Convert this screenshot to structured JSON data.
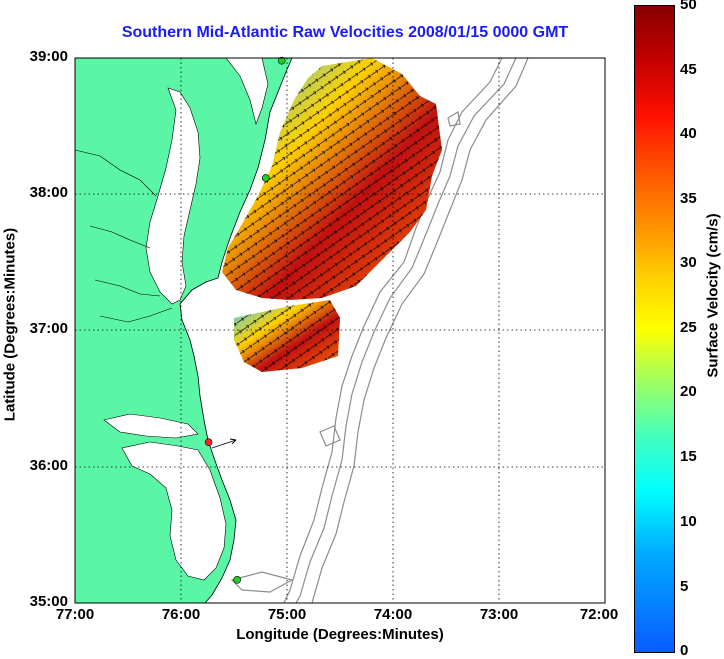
{
  "title": "Southern Mid-Atlantic Raw Velocities 2008/01/15 0000 GMT",
  "x_axis": {
    "label": "Longitude (Degrees:Minutes)",
    "ticks": [
      "77:00",
      "76:00",
      "75:00",
      "74:00",
      "73:00",
      "72:00"
    ]
  },
  "y_axis": {
    "label": "Latitude (Degrees:Minutes)",
    "ticks": [
      "39:00",
      "38:00",
      "37:00",
      "36:00",
      "35:00"
    ]
  },
  "colorbar": {
    "label": "Surface Velocity (cm/s)",
    "ticks": [
      "50",
      "45",
      "40",
      "35",
      "30",
      "25",
      "20",
      "15",
      "10",
      "5",
      "0"
    ],
    "min": 0,
    "max": 50
  },
  "colors": {
    "land": "#5af5a5",
    "title": "#1a1aff",
    "bathymetry": "#8c8c8c",
    "station_active": "#22cc22",
    "station_alert": "#ff2020"
  },
  "stations": [
    {
      "lon": -75.05,
      "lat": 38.98,
      "status": "active"
    },
    {
      "lon": -75.2,
      "lat": 38.12,
      "status": "active"
    },
    {
      "lon": -75.74,
      "lat": 36.18,
      "status": "alert"
    },
    {
      "lon": -75.47,
      "lat": 35.17,
      "status": "active"
    }
  ]
}
